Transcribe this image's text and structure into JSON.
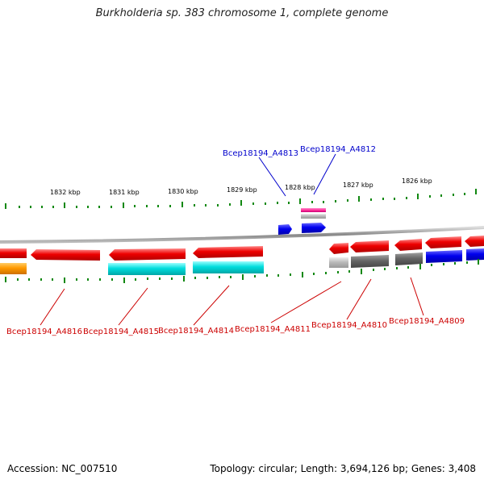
{
  "title": "Burkholderia sp. 383 chromosome 1, complete genome",
  "accession": "Accession: NC_007510",
  "summary": "Topology: circular; Length: 3,694,126 bp; Genes: 3,408",
  "ticks": [
    {
      "label": "1832 kbp",
      "kbp": 1832
    },
    {
      "label": "1831 kbp",
      "kbp": 1831
    },
    {
      "label": "1830 kbp",
      "kbp": 1830
    },
    {
      "label": "1829 kbp",
      "kbp": 1829
    },
    {
      "label": "1828 kbp",
      "kbp": 1828
    },
    {
      "label": "1827 kbp",
      "kbp": 1827
    },
    {
      "label": "1826 kbp",
      "kbp": 1826
    }
  ],
  "genes_top": [
    {
      "label": "Bcep18194_A4813",
      "color": "#0000cc"
    },
    {
      "label": "Bcep18194_A4812",
      "color": "#0000cc"
    }
  ],
  "genes_bottom": [
    {
      "label": "Bcep18194_A4816",
      "color": "#cc0000"
    },
    {
      "label": "Bcep18194_A4815",
      "color": "#cc0000"
    },
    {
      "label": "Bcep18194_A4814",
      "color": "#cc0000"
    },
    {
      "label": "Bcep18194_A4811",
      "color": "#cc0000"
    },
    {
      "label": "Bcep18194_A4810",
      "color": "#cc0000"
    },
    {
      "label": "Bcep18194_A4809",
      "color": "#cc0000"
    }
  ],
  "colors": {
    "cds": "#ee0000",
    "gene_other": "#00cccc",
    "orange": "#ff9900",
    "gray_dark": "#666666",
    "gray_light": "#bbbbbb",
    "blue": "#0000ee",
    "magenta": "#ff33aa",
    "backbone": "#999999",
    "tick": "#006600"
  }
}
